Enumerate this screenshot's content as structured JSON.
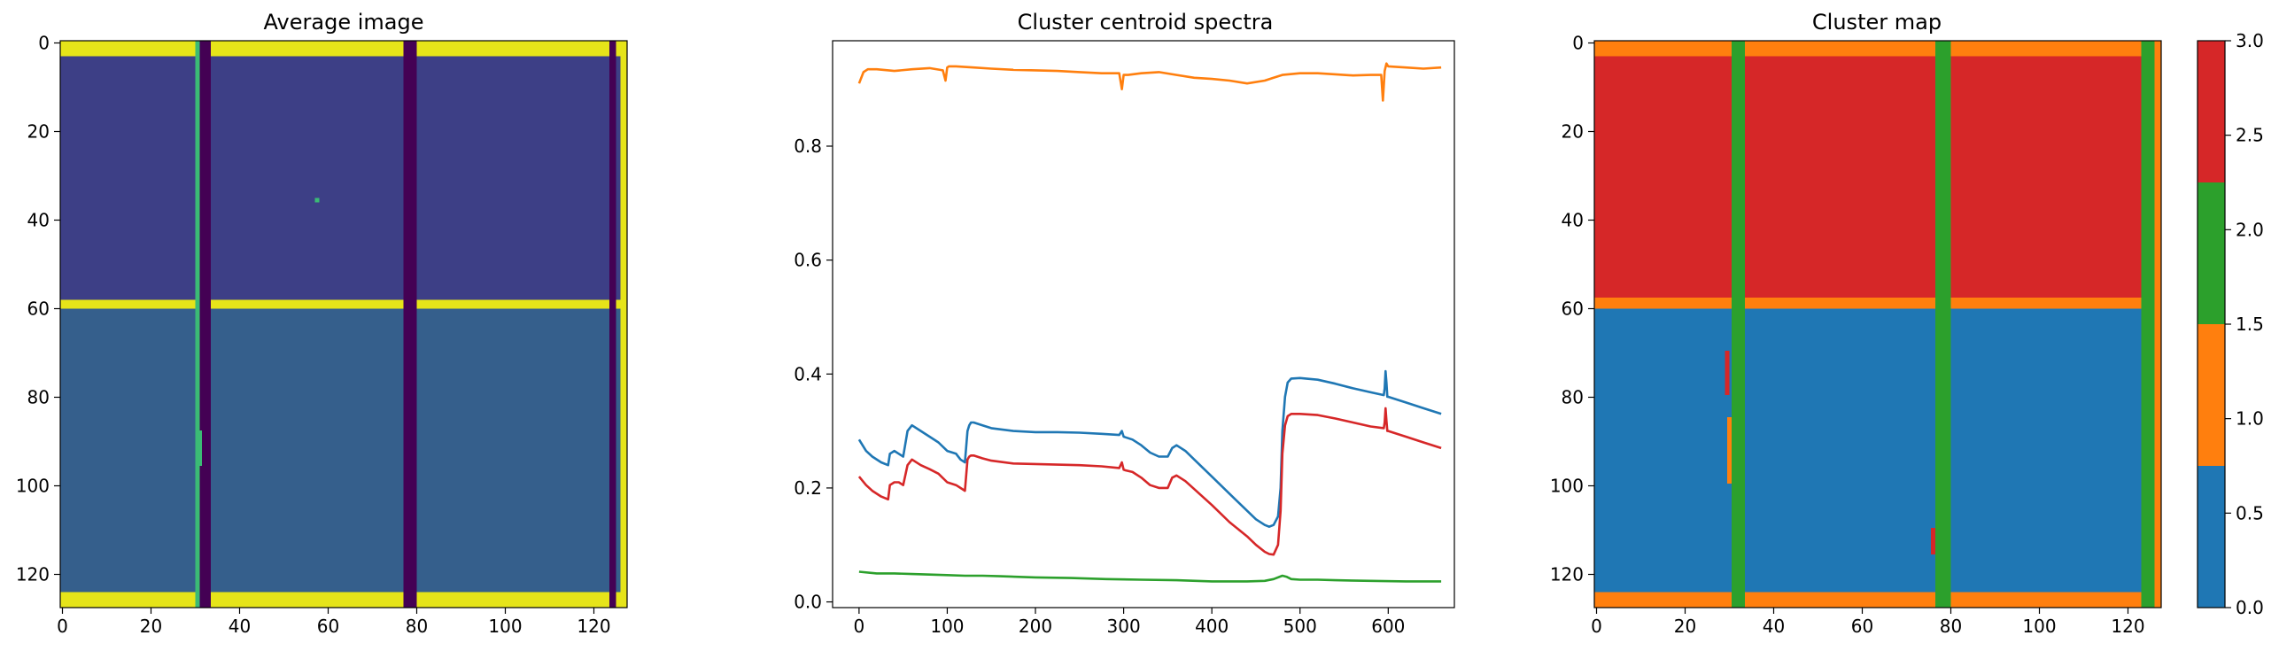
{
  "chart_data": [
    {
      "type": "heatmap",
      "title": "Average image",
      "colormap": "viridis",
      "xlim": [
        0,
        127
      ],
      "ylim": [
        127,
        0
      ],
      "xticks": [
        0,
        20,
        40,
        60,
        80,
        100,
        120
      ],
      "yticks": [
        0,
        20,
        40,
        60,
        80,
        100,
        120
      ],
      "notes_visible": "bright yellow horizontal bands near rows 0-3, 59-61 and 124-127; dark purple vertical bands near columns 31-34, 78-81 and 124-126; dark blue-indigo fill above row 60, slightly lighter blue below row 60"
    },
    {
      "type": "line",
      "title": "Cluster centroid spectra",
      "xlim": [
        -30,
        675
      ],
      "ylim": [
        -0.01,
        0.985
      ],
      "xticks": [
        0,
        100,
        200,
        300,
        400,
        500,
        600
      ],
      "yticks": [
        0.0,
        0.2,
        0.4,
        0.6,
        0.8
      ],
      "series": [
        {
          "color": "#1f77b4",
          "x": [
            0,
            8,
            15,
            25,
            33,
            35,
            40,
            45,
            50,
            55,
            60,
            70,
            80,
            90,
            100,
            110,
            115,
            120,
            123,
            125,
            127,
            130,
            140,
            150,
            175,
            200,
            225,
            250,
            275,
            295,
            298,
            300,
            302,
            310,
            320,
            330,
            340,
            350,
            355,
            360,
            370,
            380,
            400,
            420,
            440,
            450,
            460,
            465,
            470,
            475,
            478,
            480,
            483,
            486,
            490,
            500,
            520,
            540,
            560,
            580,
            595,
            596,
            597,
            598,
            599,
            600,
            620,
            640,
            660
          ],
          "y": [
            0.285,
            0.265,
            0.255,
            0.245,
            0.24,
            0.26,
            0.265,
            0.26,
            0.255,
            0.3,
            0.31,
            0.3,
            0.29,
            0.28,
            0.265,
            0.26,
            0.25,
            0.245,
            0.3,
            0.31,
            0.315,
            0.315,
            0.31,
            0.305,
            0.3,
            0.298,
            0.298,
            0.297,
            0.295,
            0.293,
            0.3,
            0.29,
            0.289,
            0.285,
            0.275,
            0.262,
            0.255,
            0.255,
            0.27,
            0.275,
            0.265,
            0.25,
            0.22,
            0.19,
            0.16,
            0.145,
            0.135,
            0.132,
            0.135,
            0.15,
            0.2,
            0.3,
            0.36,
            0.385,
            0.392,
            0.393,
            0.39,
            0.383,
            0.375,
            0.368,
            0.363,
            0.375,
            0.405,
            0.385,
            0.36,
            0.36,
            0.35,
            0.34,
            0.33
          ]
        },
        {
          "color": "#ff7f0e",
          "x": [
            0,
            5,
            10,
            20,
            40,
            60,
            80,
            95,
            98,
            100,
            102,
            110,
            130,
            150,
            175,
            200,
            225,
            250,
            275,
            295,
            298,
            300,
            302,
            305,
            320,
            340,
            360,
            380,
            400,
            420,
            440,
            460,
            470,
            480,
            500,
            520,
            540,
            560,
            580,
            592,
            594,
            596,
            598,
            600,
            620,
            640,
            660
          ],
          "y": [
            0.91,
            0.93,
            0.935,
            0.935,
            0.932,
            0.935,
            0.937,
            0.933,
            0.915,
            0.938,
            0.94,
            0.94,
            0.938,
            0.936,
            0.934,
            0.933,
            0.932,
            0.93,
            0.928,
            0.928,
            0.9,
            0.925,
            0.925,
            0.925,
            0.928,
            0.93,
            0.925,
            0.92,
            0.918,
            0.915,
            0.91,
            0.915,
            0.92,
            0.925,
            0.928,
            0.928,
            0.926,
            0.924,
            0.925,
            0.925,
            0.88,
            0.932,
            0.945,
            0.94,
            0.938,
            0.936,
            0.938
          ]
        },
        {
          "color": "#2ca02c",
          "x": [
            0,
            20,
            40,
            60,
            80,
            100,
            120,
            140,
            160,
            200,
            240,
            280,
            320,
            360,
            400,
            420,
            440,
            460,
            470,
            480,
            485,
            490,
            500,
            520,
            540,
            580,
            620,
            660
          ],
          "y": [
            0.053,
            0.05,
            0.05,
            0.049,
            0.048,
            0.047,
            0.046,
            0.046,
            0.045,
            0.043,
            0.042,
            0.04,
            0.039,
            0.038,
            0.036,
            0.036,
            0.036,
            0.037,
            0.04,
            0.046,
            0.044,
            0.04,
            0.039,
            0.039,
            0.038,
            0.037,
            0.036,
            0.036
          ]
        },
        {
          "color": "#d62728",
          "x": [
            0,
            8,
            15,
            25,
            33,
            35,
            40,
            45,
            50,
            55,
            60,
            70,
            80,
            90,
            100,
            110,
            115,
            120,
            123,
            125,
            127,
            130,
            140,
            150,
            175,
            200,
            225,
            250,
            275,
            295,
            298,
            300,
            302,
            310,
            320,
            330,
            340,
            350,
            355,
            360,
            370,
            380,
            400,
            420,
            440,
            450,
            460,
            465,
            470,
            475,
            478,
            480,
            483,
            486,
            490,
            500,
            520,
            540,
            560,
            580,
            595,
            596,
            597,
            598,
            599,
            600,
            620,
            640,
            660
          ],
          "y": [
            0.22,
            0.205,
            0.195,
            0.185,
            0.18,
            0.205,
            0.21,
            0.21,
            0.205,
            0.24,
            0.25,
            0.24,
            0.233,
            0.225,
            0.21,
            0.205,
            0.2,
            0.195,
            0.25,
            0.255,
            0.257,
            0.257,
            0.252,
            0.248,
            0.243,
            0.242,
            0.241,
            0.24,
            0.238,
            0.235,
            0.245,
            0.232,
            0.231,
            0.228,
            0.218,
            0.205,
            0.2,
            0.2,
            0.218,
            0.222,
            0.212,
            0.198,
            0.17,
            0.14,
            0.115,
            0.1,
            0.088,
            0.084,
            0.083,
            0.1,
            0.16,
            0.26,
            0.31,
            0.326,
            0.33,
            0.33,
            0.328,
            0.322,
            0.315,
            0.308,
            0.305,
            0.315,
            0.34,
            0.318,
            0.3,
            0.3,
            0.29,
            0.28,
            0.27
          ]
        }
      ]
    },
    {
      "type": "heatmap",
      "title": "Cluster map",
      "colormap": "discrete tab10 (4 clusters)",
      "cluster_colors": [
        "#1f77b4",
        "#ff7f0e",
        "#2ca02c",
        "#d62728"
      ],
      "xlim": [
        0,
        127
      ],
      "ylim": [
        127,
        0
      ],
      "xticks": [
        0,
        20,
        40,
        60,
        80,
        100,
        120
      ],
      "yticks": [
        0,
        20,
        40,
        60,
        80,
        100,
        120
      ],
      "colorbar": {
        "range": [
          0.0,
          3.0
        ],
        "ticks": [
          0.0,
          0.5,
          1.0,
          1.5,
          2.0,
          2.5,
          3.0
        ]
      }
    }
  ],
  "colors": {
    "viridis_dark": "#440154",
    "viridis_indigo": "#3d3f86",
    "viridis_blue": "#355f8c",
    "viridis_yellow": "#e6e419",
    "viridis_green": "#3bbb75",
    "c0": "#1f77b4",
    "c1": "#ff7f0e",
    "c2": "#2ca02c",
    "c3": "#d62728"
  }
}
